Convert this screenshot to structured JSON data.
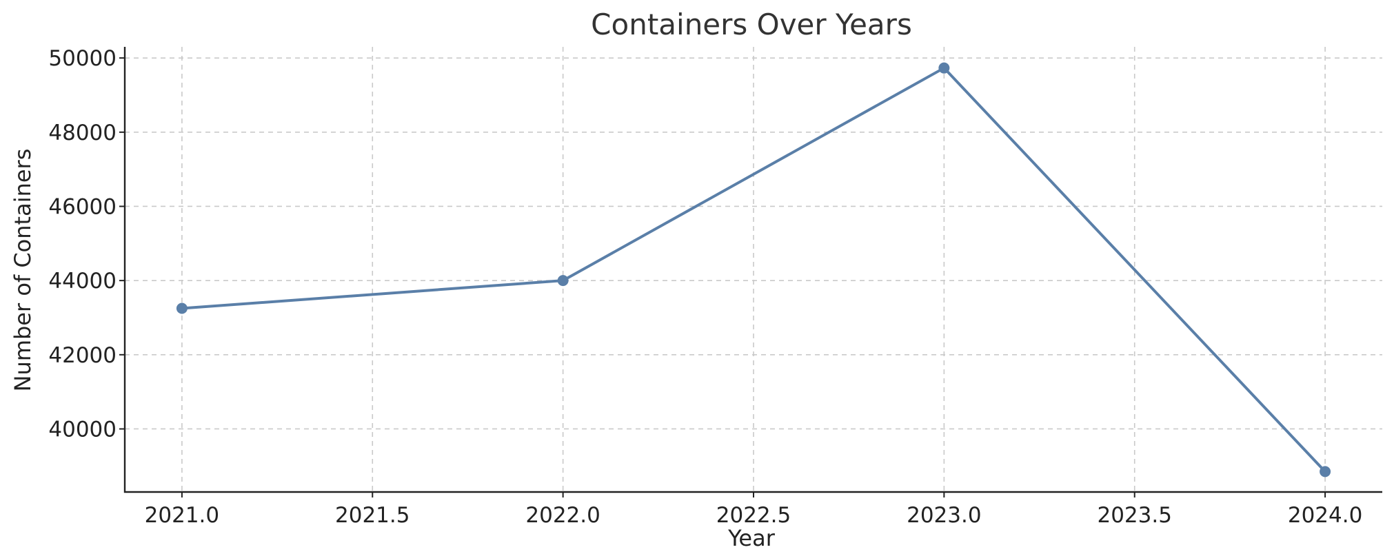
{
  "chart_data": {
    "type": "line",
    "title": "Containers Over Years",
    "xlabel": "Year",
    "ylabel": "Number of Containers",
    "xlim": [
      2020.85,
      2024.15
    ],
    "ylim": [
      38300,
      50300
    ],
    "x_ticks": [
      "2021.0",
      "2021.5",
      "2022.0",
      "2022.5",
      "2023.0",
      "2023.5",
      "2024.0"
    ],
    "y_ticks": [
      "40000",
      "42000",
      "44000",
      "46000",
      "48000",
      "50000"
    ],
    "grid": true,
    "series": [
      {
        "color": "#5a7fa8",
        "marker": "circle",
        "x": [
          2021,
          2022,
          2023,
          2024
        ],
        "y": [
          43250,
          44000,
          49730,
          38850
        ]
      }
    ]
  }
}
